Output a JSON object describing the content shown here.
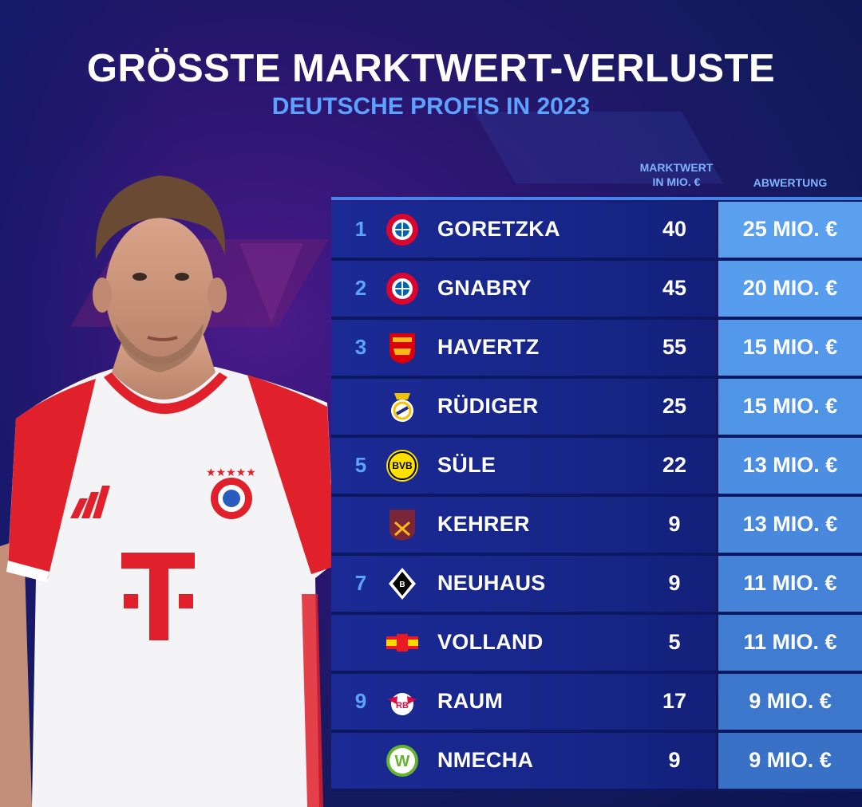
{
  "header": {
    "title": "GRÖSSTE MARKTWERT-VERLUSTE",
    "subtitle": "DEUTSCHE PROFIS IN 2023"
  },
  "columns": {
    "marktwert_line1": "MARKTWERT",
    "marktwert_line2": "IN MIO. €",
    "abwertung": "ABWERTUNG"
  },
  "rows": [
    {
      "rank": "1",
      "club_icon": "fc-bayern-logo-icon",
      "name": "GORETZKA",
      "marktwert": "40",
      "abwertung": "25 MIO. €",
      "ab_color": "#5aa0ef"
    },
    {
      "rank": "2",
      "club_icon": "fc-bayern-logo-icon",
      "name": "GNABRY",
      "marktwert": "45",
      "abwertung": "20 MIO. €",
      "ab_color": "#579ced"
    },
    {
      "rank": "3",
      "club_icon": "arsenal-logo-icon",
      "name": "HAVERTZ",
      "marktwert": "55",
      "abwertung": "15 MIO. €",
      "ab_color": "#5398ea"
    },
    {
      "rank": "",
      "club_icon": "real-madrid-logo-icon",
      "name": "RÜDIGER",
      "marktwert": "25",
      "abwertung": "15 MIO. €",
      "ab_color": "#5094e6"
    },
    {
      "rank": "5",
      "club_icon": "bvb-logo-icon",
      "name": "SÜLE",
      "marktwert": "22",
      "abwertung": "13 MIO. €",
      "ab_color": "#4c8fe2"
    },
    {
      "rank": "",
      "club_icon": "west-ham-logo-icon",
      "name": "KEHRER",
      "marktwert": "9",
      "abwertung": "13 MIO. €",
      "ab_color": "#4889dd"
    },
    {
      "rank": "7",
      "club_icon": "gladbach-logo-icon",
      "name": "NEUHAUS",
      "marktwert": "9",
      "abwertung": "11 MIO. €",
      "ab_color": "#4483d8"
    },
    {
      "rank": "",
      "club_icon": "union-berlin-logo-icon",
      "name": "VOLLAND",
      "marktwert": "5",
      "abwertung": "11 MIO. €",
      "ab_color": "#407dd2"
    },
    {
      "rank": "9",
      "club_icon": "rb-leipzig-logo-icon",
      "name": "RAUM",
      "marktwert": "17",
      "abwertung": "9 MIO. €",
      "ab_color": "#3c77cc"
    },
    {
      "rank": "",
      "club_icon": "wolfsburg-logo-icon",
      "name": "NMECHA",
      "marktwert": "9",
      "abwertung": "9 MIO. €",
      "ab_color": "#3871c6"
    }
  ]
}
